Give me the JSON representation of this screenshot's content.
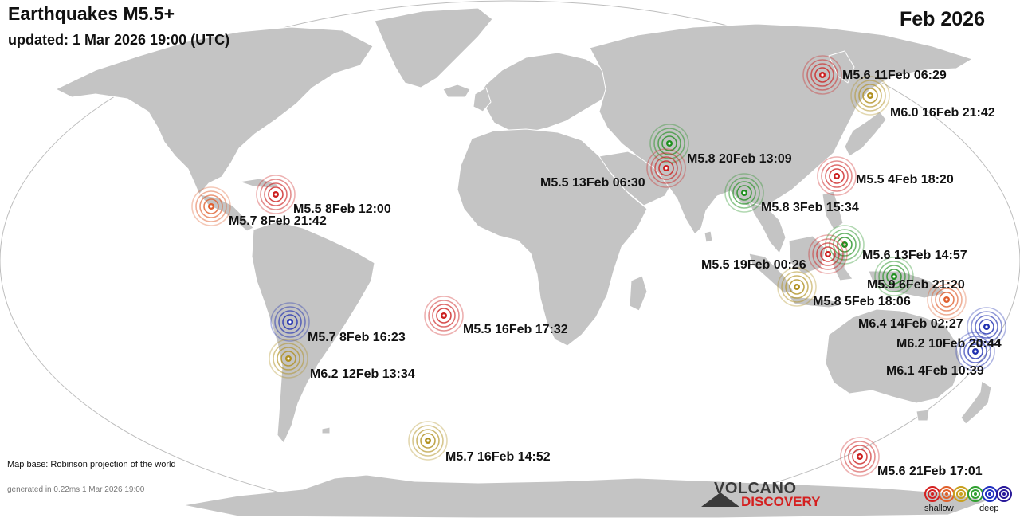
{
  "header": {
    "title": "Earthquakes M5.5+",
    "updated": "updated:  1 Mar 2026 19:00 (UTC)",
    "month": "Feb 2026"
  },
  "footer": {
    "map_base": "Map base: Robinson projection of the world",
    "generated": "generated in 0.22ms  1 Mar 2026 19:00",
    "brand_line1": "VOLCANO",
    "brand_line2": "DISCOVERY"
  },
  "legend": {
    "shallow_label": "shallow",
    "deep_label": "deep",
    "colors": [
      "#d42020",
      "#e0602a",
      "#c8a020",
      "#30a030",
      "#2030c0",
      "#2a1a9a"
    ]
  },
  "depth_colors": {
    "red": "#cc2020",
    "orange": "#e06030",
    "olive": "#b09020",
    "green": "#209020",
    "blue": "#2030b0"
  },
  "quakes": [
    {
      "label": "M5.6 11Feb 06:29",
      "color": "red",
      "lat": 53.0,
      "lon": 160.5
    },
    {
      "label": "M6.0 16Feb 21:42",
      "color": "olive",
      "lat": 48.5,
      "lon": 151.5
    },
    {
      "label": "M5.8 20Feb 13:09",
      "color": "green",
      "lat": 37.0,
      "lon": 70.5
    },
    {
      "label": "M5.5 13Feb 06:30",
      "color": "red",
      "lat": 30.0,
      "lon": 70.0
    },
    {
      "label": "M5.5  4Feb 18:20",
      "color": "red",
      "lat": 25.5,
      "lon": 124.0
    },
    {
      "label": "M5.8  3Feb 15:34",
      "color": "green",
      "lat": 21.0,
      "lon": 95.5
    },
    {
      "label": "M5.5  8Feb 12:00",
      "color": "red",
      "lat": 19.5,
      "lon": -70.0
    },
    {
      "label": "M5.7  8Feb 21:42",
      "color": "orange",
      "lat": 16.0,
      "lon": -97.0
    },
    {
      "label": "M5.6 13Feb 14:57",
      "color": "green",
      "lat": 5.5,
      "lon": 126.0
    },
    {
      "label": "M5.5 19Feb 00:26",
      "color": "red",
      "lat": 2.5,
      "lon": 122.5
    },
    {
      "label": "M5.9  6Feb 21:20",
      "color": "green",
      "lat": -2.5,
      "lon": 140.5
    },
    {
      "label": "M5.8  5Feb 18:06",
      "color": "olive",
      "lat": -6.0,
      "lon": 105.5
    },
    {
      "label": "M6.4 14Feb 02:27",
      "color": "orange",
      "lat": -9.0,
      "lon": 157.0
    },
    {
      "label": "M6.2 10Feb 20:44",
      "color": "blue",
      "lat": -17.0,
      "lon": 167.5
    },
    {
      "label": "M6.1  4Feb 10:39",
      "color": "blue",
      "lat": -23.0,
      "lon": 166.0
    },
    {
      "label": "M5.7  8Feb 16:23",
      "color": "blue",
      "lat": -17.5,
      "lon": -69.5
    },
    {
      "label": "M6.2 12Feb 13:34",
      "color": "olive",
      "lat": -27.5,
      "lon": -70.5
    },
    {
      "label": "M5.5 16Feb 17:32",
      "color": "red",
      "lat": -15.0,
      "lon": -13.5
    },
    {
      "label": "M5.7 16Feb 14:52",
      "color": "olive",
      "lat": -56.0,
      "lon": -27.0
    },
    {
      "label": "M5.6 21Feb 17:01",
      "color": "red",
      "lat": -58.0,
      "lon": 148.0
    }
  ]
}
